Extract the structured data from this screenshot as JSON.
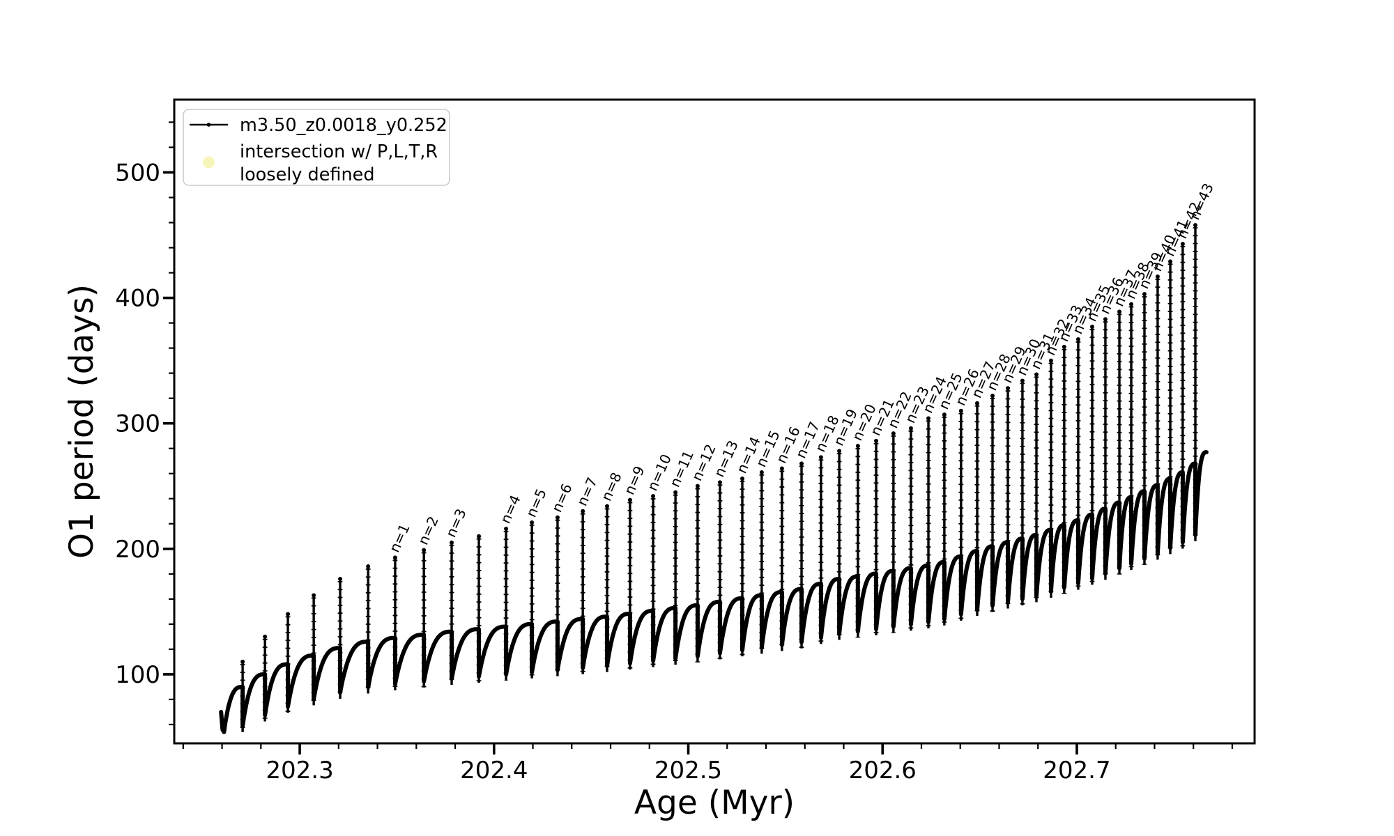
{
  "chart_data": {
    "type": "line",
    "title": "",
    "xlabel": "Age (Myr)",
    "ylabel": "O1 period (days)",
    "xlim": [
      202.2354,
      202.7915
    ],
    "ylim": [
      45,
      558
    ],
    "x_major_ticks": [
      {
        "v": 202.3,
        "label": "202.3"
      },
      {
        "v": 202.4,
        "label": "202.4"
      },
      {
        "v": 202.5,
        "label": "202.5"
      },
      {
        "v": 202.6,
        "label": "202.6"
      },
      {
        "v": 202.7,
        "label": "202.7"
      }
    ],
    "x_minor_start": 202.24,
    "x_minor_step": 0.02,
    "y_major_ticks": [
      {
        "v": 100,
        "label": "100"
      },
      {
        "v": 200,
        "label": "200"
      },
      {
        "v": 300,
        "label": "300"
      },
      {
        "v": 400,
        "label": "400"
      },
      {
        "v": 500,
        "label": "500"
      }
    ],
    "y_minor_start": 60,
    "y_minor_step": 20,
    "grid": false,
    "legend_position": "upper-left",
    "legend": {
      "series_label": "m3.50_z0.0018_y0.252",
      "intersection_label_line1": "intersection w/ P,L,T,R",
      "intersection_label_line2": "loosely defined",
      "intersection_marker_color": "#f5f5b4",
      "series_color": "#000000"
    },
    "series_start": {
      "age": 202.2595,
      "value": 70
    },
    "series_start_dip": {
      "age": 202.261,
      "value": 54
    },
    "series_end": {
      "age": 202.7667,
      "value": 277
    },
    "baseline_anchors": [
      [
        202.261,
        54
      ],
      [
        202.2706,
        90
      ],
      [
        202.2821,
        100
      ],
      [
        202.2939,
        108
      ],
      [
        202.3072,
        115
      ],
      [
        202.3208,
        121
      ],
      [
        202.3352,
        126
      ],
      [
        202.3491,
        129
      ],
      [
        202.3782,
        134
      ],
      [
        202.4062,
        138
      ],
      [
        202.4582,
        146
      ],
      [
        202.5048,
        155
      ],
      [
        202.5583,
        168
      ],
      [
        202.5777,
        176
      ],
      [
        202.5873,
        178
      ],
      [
        202.629,
        188
      ],
      [
        202.654,
        201
      ],
      [
        202.679,
        211
      ],
      [
        202.703,
        224
      ],
      [
        202.725,
        239
      ],
      [
        202.742,
        251
      ],
      [
        202.7545,
        261
      ],
      [
        202.761,
        268
      ],
      [
        202.7667,
        277
      ]
    ],
    "spikes": [
      {
        "age": 202.2706,
        "peak": 110,
        "label": null
      },
      {
        "age": 202.2821,
        "peak": 130,
        "label": null
      },
      {
        "age": 202.2939,
        "peak": 148,
        "label": null
      },
      {
        "age": 202.3072,
        "peak": 163,
        "label": null
      },
      {
        "age": 202.3208,
        "peak": 176,
        "label": null
      },
      {
        "age": 202.3352,
        "peak": 186,
        "label": null
      },
      {
        "age": 202.3491,
        "peak": 193,
        "label": "n=1"
      },
      {
        "age": 202.3639,
        "peak": 199,
        "label": "n=2"
      },
      {
        "age": 202.3782,
        "peak": 205,
        "label": "n=3"
      },
      {
        "age": 202.3922,
        "peak": 210,
        "label": null
      },
      {
        "age": 202.4062,
        "peak": 216,
        "label": "n=4"
      },
      {
        "age": 202.4195,
        "peak": 221,
        "label": "n=5"
      },
      {
        "age": 202.4327,
        "peak": 225,
        "label": "n=6"
      },
      {
        "age": 202.4457,
        "peak": 230,
        "label": "n=7"
      },
      {
        "age": 202.4582,
        "peak": 234,
        "label": "n=8"
      },
      {
        "age": 202.47,
        "peak": 239,
        "label": "n=9"
      },
      {
        "age": 202.4819,
        "peak": 242,
        "label": "n=10"
      },
      {
        "age": 202.4934,
        "peak": 245,
        "label": "n=11"
      },
      {
        "age": 202.5048,
        "peak": 250,
        "label": "n=12"
      },
      {
        "age": 202.5163,
        "peak": 253,
        "label": "n=13"
      },
      {
        "age": 202.5278,
        "peak": 256,
        "label": "n=14"
      },
      {
        "age": 202.5378,
        "peak": 261,
        "label": "n=15"
      },
      {
        "age": 202.5482,
        "peak": 264,
        "label": "n=16"
      },
      {
        "age": 202.5583,
        "peak": 268,
        "label": "n=17"
      },
      {
        "age": 202.5683,
        "peak": 273,
        "label": "n=18"
      },
      {
        "age": 202.5777,
        "peak": 278,
        "label": "n=19"
      },
      {
        "age": 202.5873,
        "peak": 282,
        "label": "n=20"
      },
      {
        "age": 202.5967,
        "peak": 286,
        "label": "n=21"
      },
      {
        "age": 202.6056,
        "peak": 292,
        "label": "n=22"
      },
      {
        "age": 202.6146,
        "peak": 296,
        "label": "n=23"
      },
      {
        "age": 202.6236,
        "peak": 304,
        "label": "n=24"
      },
      {
        "age": 202.6318,
        "peak": 307,
        "label": "n=25"
      },
      {
        "age": 202.6404,
        "peak": 310,
        "label": "n=26"
      },
      {
        "age": 202.6487,
        "peak": 316,
        "label": "n=27"
      },
      {
        "age": 202.6566,
        "peak": 322,
        "label": "n=28"
      },
      {
        "age": 202.6645,
        "peak": 328,
        "label": "n=29"
      },
      {
        "age": 202.672,
        "peak": 334,
        "label": "n=30"
      },
      {
        "age": 202.6792,
        "peak": 339,
        "label": "n=31"
      },
      {
        "age": 202.6867,
        "peak": 350,
        "label": "n=32"
      },
      {
        "age": 202.6935,
        "peak": 361,
        "label": "n=33"
      },
      {
        "age": 202.7007,
        "peak": 367,
        "label": "n=34"
      },
      {
        "age": 202.7079,
        "peak": 377,
        "label": "n=35"
      },
      {
        "age": 202.7147,
        "peak": 383,
        "label": "n=36"
      },
      {
        "age": 202.7219,
        "peak": 389,
        "label": "n=37"
      },
      {
        "age": 202.728,
        "peak": 395,
        "label": "n=38"
      },
      {
        "age": 202.7348,
        "peak": 403,
        "label": "n=39"
      },
      {
        "age": 202.7416,
        "peak": 417,
        "label": "n=40"
      },
      {
        "age": 202.7481,
        "peak": 429,
        "label": "n=41"
      },
      {
        "age": 202.7545,
        "peak": 443,
        "label": "n=42"
      },
      {
        "age": 202.761,
        "peak": 458,
        "label": "n=43"
      }
    ],
    "colors": {
      "line": "#000000",
      "background": "#ffffff",
      "legend_border": "#cccccc",
      "intersection_marker": "#f5f5b4"
    }
  }
}
